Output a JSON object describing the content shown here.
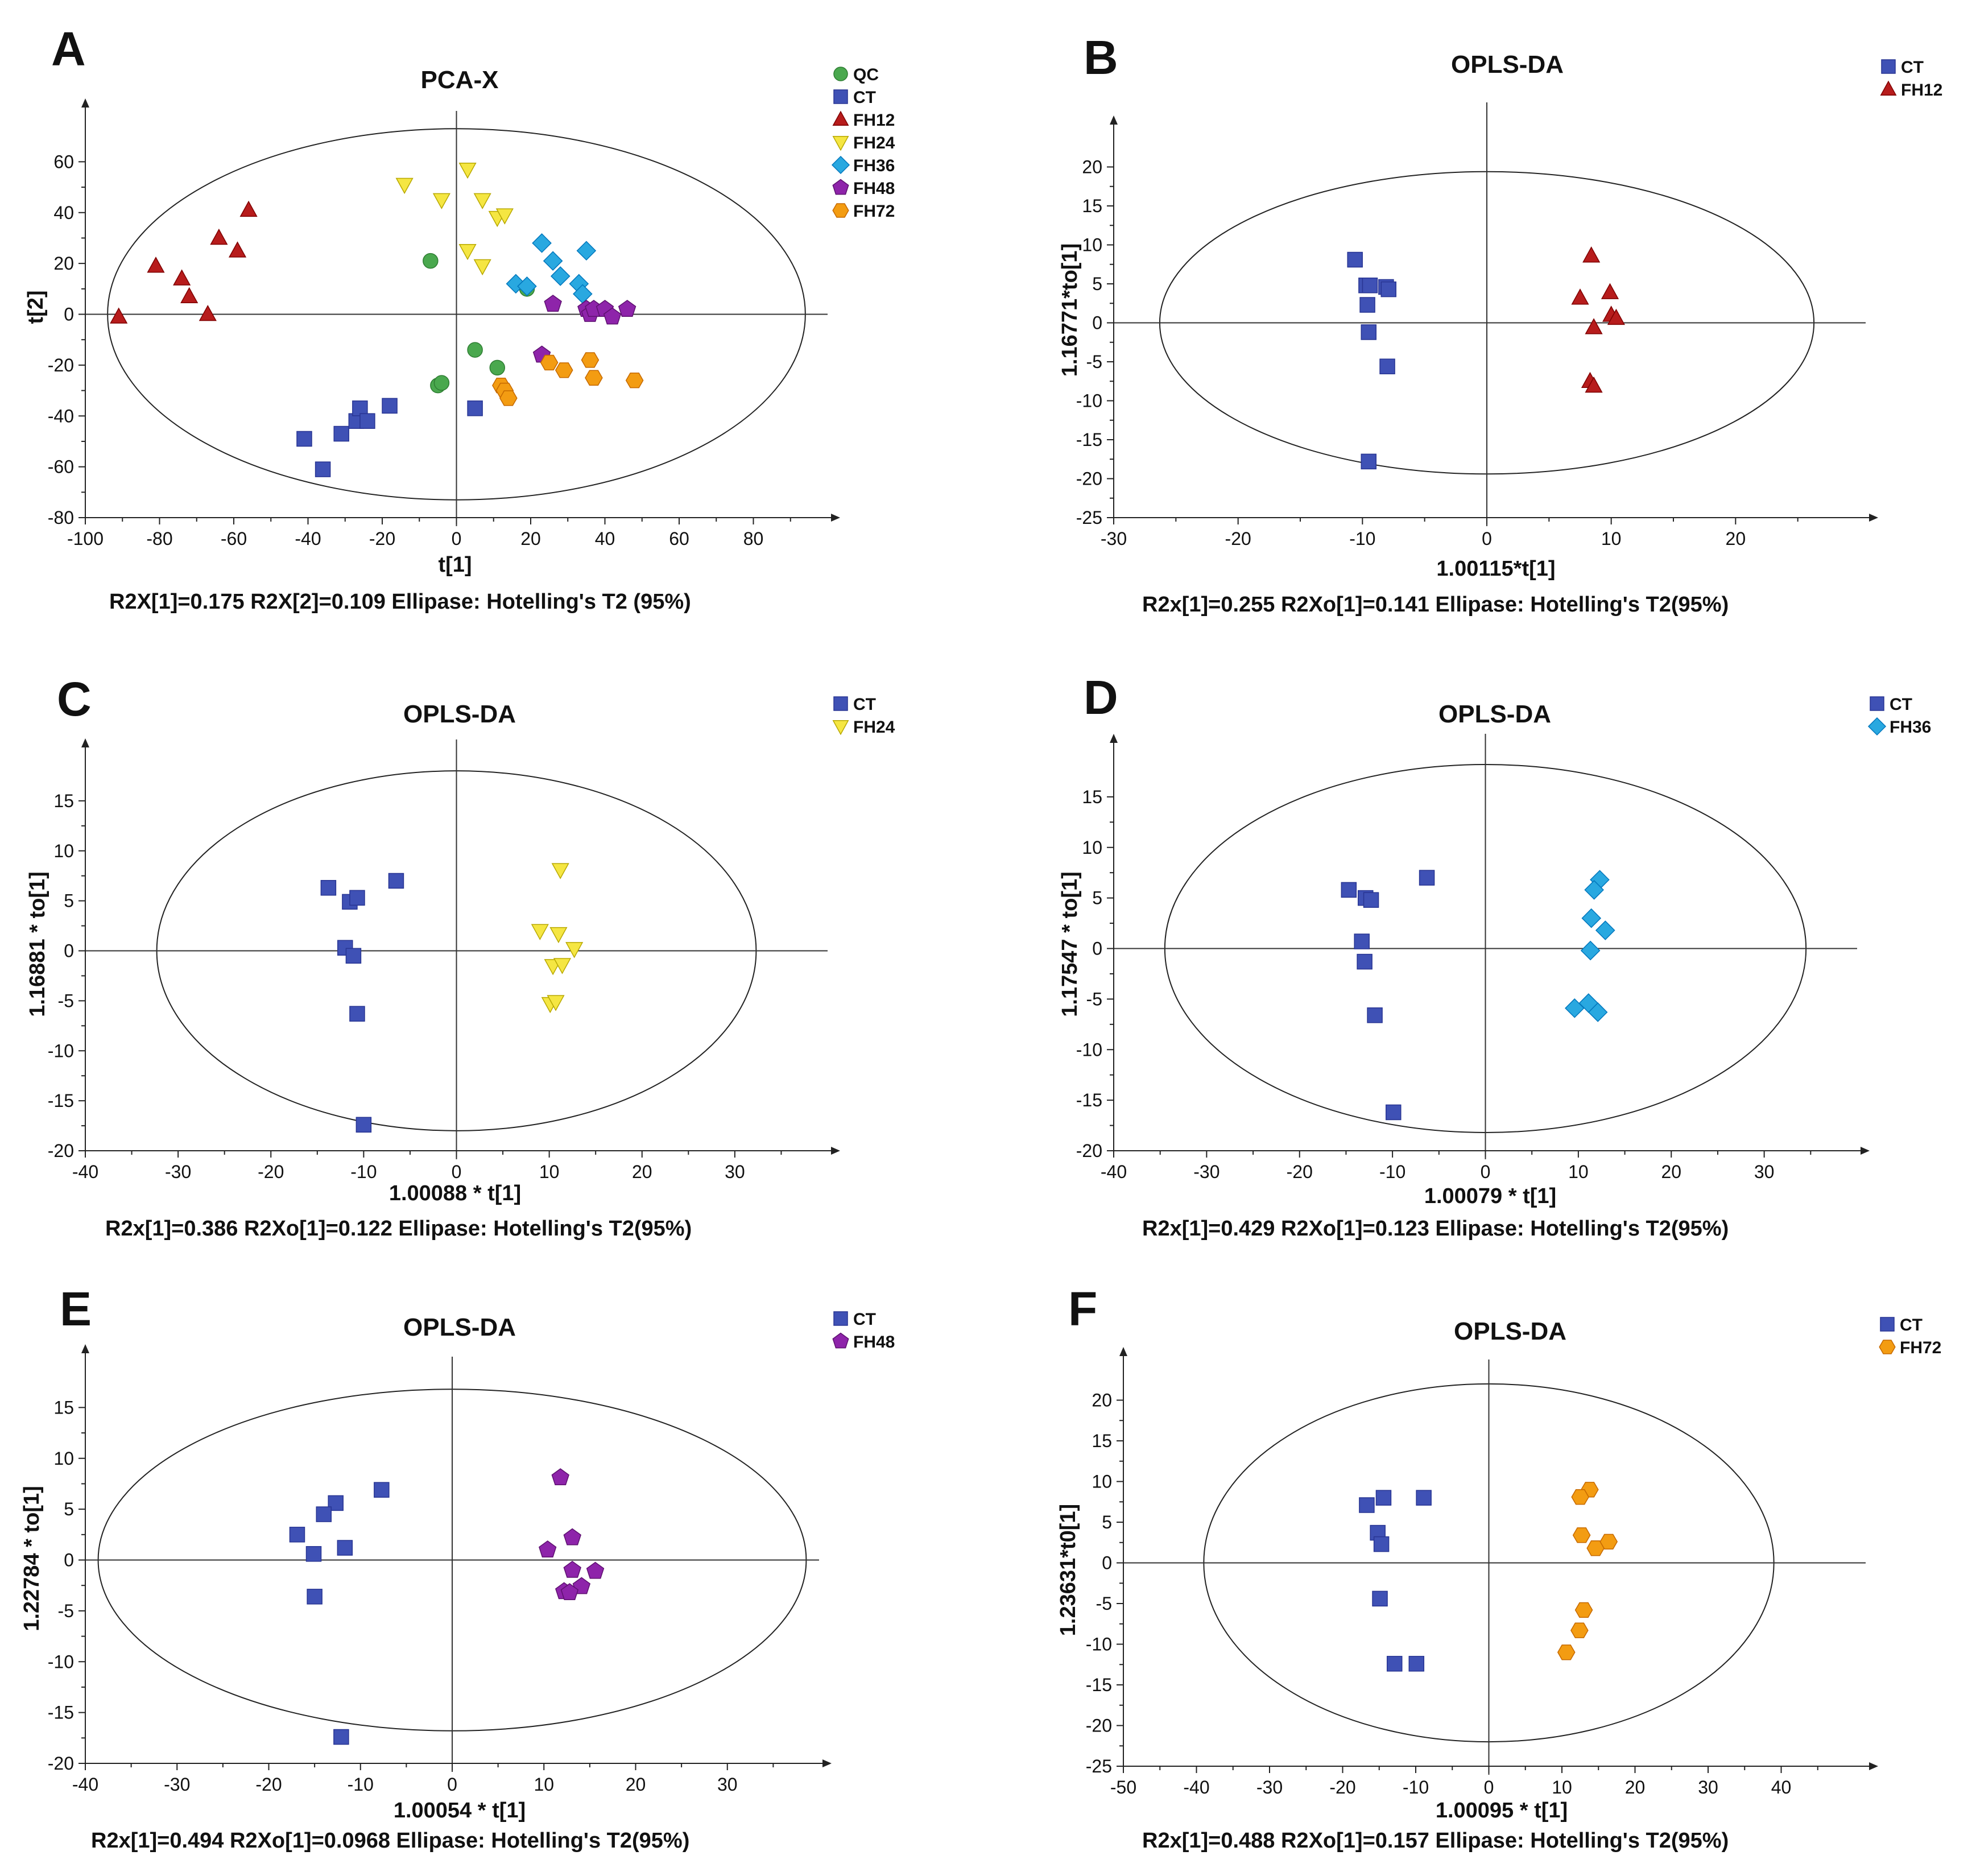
{
  "groups": {
    "QC": {
      "color": "#4aa84e",
      "stroke": "#2e7d32",
      "marker": "circle"
    },
    "CT": {
      "color": "#3f51b5",
      "stroke": "#283593",
      "marker": "square"
    },
    "FH12": {
      "color": "#b71c1c",
      "stroke": "#7f0000",
      "marker": "triangle"
    },
    "FH24": {
      "color": "#f5e642",
      "stroke": "#b8a800",
      "marker": "triangle-down"
    },
    "FH36": {
      "color": "#29a8e0",
      "stroke": "#0277bd",
      "marker": "diamond"
    },
    "FH48": {
      "color": "#8e24aa",
      "stroke": "#5e1070",
      "marker": "pentagon"
    },
    "FH72": {
      "color": "#f39c12",
      "stroke": "#c66900",
      "marker": "hexagon"
    }
  },
  "chart_data": [
    {
      "id": "A",
      "letter": "A",
      "type": "scatter",
      "title": "PCA-X",
      "xlabel": "t[1]",
      "ylabel": "t[2]",
      "xlim": [
        -100,
        100
      ],
      "ylim": [
        -80,
        80
      ],
      "xticks": [
        -100,
        -80,
        -60,
        -40,
        -20,
        0,
        20,
        40,
        60,
        80
      ],
      "yticks": [
        -80,
        -60,
        -40,
        -20,
        0,
        20,
        40,
        60
      ],
      "ellipse": {
        "cx": 0,
        "cy": 0,
        "rx": 94,
        "ry": 73
      },
      "footnote": "R2X[1]=0.175    R2X[2]=0.109  Ellipase: Hotelling's T2 (95%)",
      "legend": [
        "QC",
        "CT",
        "FH12",
        "FH24",
        "FH36",
        "FH48",
        "FH72"
      ],
      "series": [
        {
          "group": "QC",
          "points": [
            [
              -7,
              21
            ],
            [
              -5,
              -28
            ],
            [
              -4,
              -27
            ],
            [
              5,
              -14
            ],
            [
              11,
              -21
            ],
            [
              19,
              10
            ]
          ]
        },
        {
          "group": "CT",
          "points": [
            [
              -41,
              -49
            ],
            [
              -36,
              -61
            ],
            [
              -31,
              -47
            ],
            [
              -27,
              -42
            ],
            [
              -26,
              -37
            ],
            [
              -24,
              -42
            ],
            [
              -18,
              -36
            ],
            [
              5,
              -37
            ]
          ]
        },
        {
          "group": "FH12",
          "points": [
            [
              -91,
              -1
            ],
            [
              -81,
              19
            ],
            [
              -74,
              14
            ],
            [
              -72,
              7
            ],
            [
              -67,
              0
            ],
            [
              -64,
              30
            ],
            [
              -59,
              25
            ],
            [
              -56,
              41
            ]
          ]
        },
        {
          "group": "FH24",
          "points": [
            [
              -14,
              51
            ],
            [
              -4,
              45
            ],
            [
              3,
              57
            ],
            [
              3,
              25
            ],
            [
              7,
              19
            ],
            [
              7,
              45
            ],
            [
              11,
              38
            ],
            [
              13,
              39
            ]
          ]
        },
        {
          "group": "FH36",
          "points": [
            [
              16,
              12
            ],
            [
              19,
              11
            ],
            [
              23,
              28
            ],
            [
              26,
              21
            ],
            [
              28,
              15
            ],
            [
              33,
              12
            ],
            [
              34,
              8
            ],
            [
              35,
              25
            ]
          ]
        },
        {
          "group": "FH48",
          "points": [
            [
              23,
              -16
            ],
            [
              26,
              4
            ],
            [
              35,
              2
            ],
            [
              36,
              0
            ],
            [
              37,
              2
            ],
            [
              40,
              2
            ],
            [
              42,
              -1
            ],
            [
              46,
              2
            ]
          ]
        },
        {
          "group": "FH72",
          "points": [
            [
              12,
              -28
            ],
            [
              13,
              -30
            ],
            [
              14,
              -33
            ],
            [
              25,
              -19
            ],
            [
              29,
              -22
            ],
            [
              36,
              -18
            ],
            [
              37,
              -25
            ],
            [
              48,
              -26
            ]
          ]
        }
      ]
    },
    {
      "id": "B",
      "letter": "B",
      "type": "scatter",
      "title": "OPLS-DA",
      "xlabel": "1.00115*t[1]",
      "ylabel": "1.16771*to[1]",
      "xlim": [
        -30,
        30
      ],
      "ylim": [
        -25,
        25
      ],
      "xticks": [
        -30,
        -20,
        -10,
        0,
        10,
        20
      ],
      "yticks": [
        -25,
        -20,
        -15,
        -10,
        -5,
        0,
        5,
        10,
        15,
        20
      ],
      "ellipse": {
        "cx": 0,
        "cy": 0,
        "rx": 26.3,
        "ry": 19.4
      },
      "footnote": "R2x[1]=0.255    R2Xo[1]=0.141  Ellipase: Hotelling's T2(95%)",
      "legend": [
        "CT",
        "FH12"
      ],
      "series": [
        {
          "group": "CT",
          "points": [
            [
              -10.6,
              8.1
            ],
            [
              -9.7,
              4.8
            ],
            [
              -9.4,
              4.8
            ],
            [
              -8.1,
              4.6
            ],
            [
              -7.9,
              4.3
            ],
            [
              -9.6,
              2.3
            ],
            [
              -9.5,
              -1.2
            ],
            [
              -8.0,
              -5.6
            ],
            [
              -9.5,
              -17.8
            ]
          ]
        },
        {
          "group": "FH12",
          "points": [
            [
              8.4,
              8.6
            ],
            [
              9.9,
              3.9
            ],
            [
              7.5,
              3.2
            ],
            [
              10.0,
              1.0
            ],
            [
              10.4,
              0.6
            ],
            [
              8.6,
              -0.6
            ],
            [
              8.3,
              -7.5
            ],
            [
              8.6,
              -8.1
            ]
          ]
        }
      ]
    },
    {
      "id": "C",
      "letter": "C",
      "type": "scatter",
      "title": "OPLS-DA",
      "xlabel": "1.00088 * t[1]",
      "ylabel": "1.16881 * to[1]",
      "xlim": [
        -40,
        40
      ],
      "ylim": [
        -20,
        20
      ],
      "xticks": [
        -40,
        -30,
        -20,
        -10,
        0,
        10,
        20,
        30
      ],
      "yticks": [
        -20,
        -15,
        -10,
        -5,
        0,
        5,
        10,
        15
      ],
      "ellipse": {
        "cx": 0,
        "cy": 0,
        "rx": 32.3,
        "ry": 18.0
      },
      "footnote": "R2x[1]=0.386    R2Xo[1]=0.122  Ellipase: Hotelling's T2(95%)",
      "legend": [
        "CT",
        "FH24"
      ],
      "series": [
        {
          "group": "CT",
          "points": [
            [
              -13.8,
              6.3
            ],
            [
              -6.5,
              7.0
            ],
            [
              -11.5,
              4.9
            ],
            [
              -10.7,
              5.3
            ],
            [
              -12.0,
              0.3
            ],
            [
              -11.1,
              -0.5
            ],
            [
              -10.7,
              -6.3
            ],
            [
              -10.0,
              -17.4
            ]
          ]
        },
        {
          "group": "FH24",
          "points": [
            [
              11.2,
              8.1
            ],
            [
              9.0,
              2.0
            ],
            [
              11.0,
              1.7
            ],
            [
              12.7,
              0.2
            ],
            [
              10.4,
              -1.5
            ],
            [
              11.4,
              -1.4
            ],
            [
              10.1,
              -5.3
            ],
            [
              10.7,
              -5.1
            ]
          ]
        }
      ]
    },
    {
      "id": "D",
      "letter": "D",
      "type": "scatter",
      "title": "OPLS-DA",
      "xlabel": "1.00079 * t[1]",
      "ylabel": "1.17547 * to[1]",
      "xlim": [
        -40,
        40
      ],
      "ylim": [
        -20,
        20
      ],
      "xticks": [
        -40,
        -30,
        -20,
        -10,
        0,
        10,
        20,
        30
      ],
      "yticks": [
        -20,
        -15,
        -10,
        -5,
        0,
        5,
        10,
        15
      ],
      "ellipse": {
        "cx": 0,
        "cy": 0,
        "rx": 34.5,
        "ry": 18.2
      },
      "footnote": "R2x[1]=0.429    R2Xo[1]=0.123  Ellipase: Hotelling's T2(95%)",
      "legend": [
        "CT",
        "FH36"
      ],
      "series": [
        {
          "group": "CT",
          "points": [
            [
              -14.7,
              5.8
            ],
            [
              -6.3,
              7.0
            ],
            [
              -12.9,
              5.0
            ],
            [
              -12.3,
              4.8
            ],
            [
              -13.3,
              0.7
            ],
            [
              -13.0,
              -1.3
            ],
            [
              -11.9,
              -6.6
            ],
            [
              -9.9,
              -16.2
            ]
          ]
        },
        {
          "group": "FH36",
          "points": [
            [
              12.3,
              6.8
            ],
            [
              11.7,
              5.8
            ],
            [
              11.4,
              3.0
            ],
            [
              12.9,
              1.8
            ],
            [
              11.3,
              -0.2
            ],
            [
              9.6,
              -5.9
            ],
            [
              11.1,
              -5.4
            ],
            [
              12.1,
              -6.3
            ]
          ]
        }
      ]
    },
    {
      "id": "E",
      "letter": "E",
      "type": "scatter",
      "title": "OPLS-DA",
      "xlabel": "1.00054 * t[1]",
      "ylabel": "1.22784 * to[1]",
      "xlim": [
        -40,
        40
      ],
      "ylim": [
        -20,
        20
      ],
      "xticks": [
        -40,
        -30,
        -20,
        -10,
        0,
        10,
        20,
        30
      ],
      "yticks": [
        -20,
        -15,
        -10,
        -5,
        0,
        5,
        10,
        15
      ],
      "ellipse": {
        "cx": 0,
        "cy": 0,
        "rx": 38.6,
        "ry": 16.8
      },
      "footnote": "R2x[1]=0.494    R2Xo[1]=0.0968  Ellipase: Hotelling's T2(95%)",
      "legend": [
        "CT",
        "FH48"
      ],
      "series": [
        {
          "group": "CT",
          "points": [
            [
              -7.7,
              6.9
            ],
            [
              -12.7,
              5.6
            ],
            [
              -14.0,
              4.5
            ],
            [
              -16.9,
              2.5
            ],
            [
              -11.7,
              1.2
            ],
            [
              -15.1,
              0.6
            ],
            [
              -15.0,
              -3.6
            ],
            [
              -12.1,
              -17.4
            ]
          ]
        },
        {
          "group": "FH48",
          "points": [
            [
              11.8,
              8.1
            ],
            [
              13.1,
              2.2
            ],
            [
              10.4,
              1.0
            ],
            [
              13.1,
              -1.0
            ],
            [
              15.6,
              -1.1
            ],
            [
              14.1,
              -2.6
            ],
            [
              12.2,
              -3.1
            ],
            [
              12.8,
              -3.2
            ]
          ]
        }
      ]
    },
    {
      "id": "F",
      "letter": "F",
      "type": "scatter",
      "title": "OPLS-DA",
      "xlabel": "1.00095 * t[1]",
      "ylabel": "1.23631*t0[1]",
      "xlim": [
        -50,
        50
      ],
      "ylim": [
        -25,
        25
      ],
      "xticks": [
        -50,
        -40,
        -30,
        -20,
        -10,
        0,
        10,
        20,
        30,
        40
      ],
      "yticks": [
        -25,
        -20,
        -15,
        -10,
        -5,
        0,
        5,
        10,
        15,
        20
      ],
      "ellipse": {
        "cx": 0,
        "cy": 0,
        "rx": 39.0,
        "ry": 22.0
      },
      "footnote": "R2x[1]=0.488    R2Xo[1]=0.157  Ellipase: Hotelling's T2(95%)",
      "legend": [
        "CT",
        "FH72"
      ],
      "series": [
        {
          "group": "CT",
          "points": [
            [
              -16.7,
              7.1
            ],
            [
              -14.4,
              8.0
            ],
            [
              -8.9,
              8.0
            ],
            [
              -15.2,
              3.7
            ],
            [
              -14.7,
              2.3
            ],
            [
              -14.9,
              -4.4
            ],
            [
              -12.9,
              -12.4
            ],
            [
              -9.9,
              -12.4
            ]
          ]
        },
        {
          "group": "FH72",
          "points": [
            [
              13.8,
              9.0
            ],
            [
              12.5,
              8.1
            ],
            [
              12.7,
              3.4
            ],
            [
              14.6,
              1.8
            ],
            [
              16.4,
              2.6
            ],
            [
              13.0,
              -5.8
            ],
            [
              12.4,
              -8.3
            ],
            [
              10.6,
              -11.0
            ]
          ]
        }
      ]
    }
  ]
}
